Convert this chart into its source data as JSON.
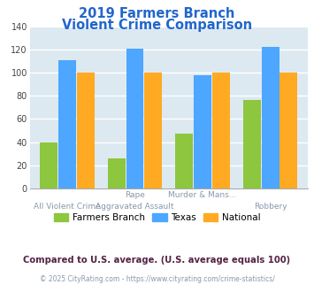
{
  "title_line1": "2019 Farmers Branch",
  "title_line2": "Violent Crime Comparison",
  "title_color": "#2266cc",
  "cat_labels_top": [
    "",
    "Rape",
    "Murder & Mans...",
    ""
  ],
  "cat_labels_bot": [
    "All Violent Crime",
    "Aggravated Assault",
    "",
    "Robbery"
  ],
  "farmers_branch": [
    40,
    26,
    47,
    76
  ],
  "texas": [
    111,
    121,
    98,
    122
  ],
  "national": [
    100,
    100,
    100,
    100
  ],
  "color_fb": "#8dc63f",
  "color_tx": "#4da6ff",
  "color_nat": "#ffaa22",
  "ylim": [
    0,
    140
  ],
  "yticks": [
    0,
    20,
    40,
    60,
    80,
    100,
    120,
    140
  ],
  "bg_color": "#dce9f0",
  "grid_color": "#ffffff",
  "legend_labels": [
    "Farmers Branch",
    "Texas",
    "National"
  ],
  "footnote1": "Compared to U.S. average. (U.S. average equals 100)",
  "footnote2": "© 2025 CityRating.com - https://www.cityrating.com/crime-statistics/",
  "footnote1_color": "#552244",
  "footnote2_color": "#8899aa"
}
